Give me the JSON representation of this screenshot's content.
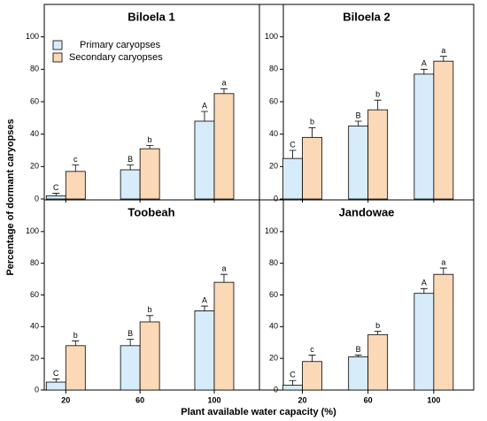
{
  "y_label": "Percentage of dormant caryopses",
  "x_label": "Plant available water capacity (%)",
  "categories": [
    "20",
    "60",
    "100"
  ],
  "chart_data": [
    {
      "type": "bar",
      "title": "Biloela 1",
      "ylim": [
        0,
        120
      ],
      "yticks": [
        0,
        20,
        40,
        60,
        80,
        100
      ],
      "series": [
        {
          "name": "Primary caryopses",
          "color": "#d6ecfa",
          "values": [
            2,
            18,
            48
          ],
          "errors": [
            1.5,
            3,
            6
          ],
          "letters": [
            "C",
            "B",
            "A"
          ]
        },
        {
          "name": "Secondary caryopses",
          "color": "#fbd9b6",
          "values": [
            17,
            31,
            65
          ],
          "errors": [
            4,
            2,
            3
          ],
          "letters": [
            "c",
            "b",
            "a"
          ]
        }
      ]
    },
    {
      "type": "bar",
      "title": "Biloela 2",
      "ylim": [
        0,
        120
      ],
      "yticks": [
        0,
        20,
        40,
        60,
        80,
        100
      ],
      "series": [
        {
          "name": "Primary caryopses",
          "color": "#d6ecfa",
          "values": [
            25,
            45,
            77
          ],
          "errors": [
            5,
            3,
            3
          ],
          "letters": [
            "C",
            "B",
            "A"
          ]
        },
        {
          "name": "Secondary caryopses",
          "color": "#fbd9b6",
          "values": [
            38,
            55,
            85
          ],
          "errors": [
            6,
            6,
            3
          ],
          "letters": [
            "b",
            "b",
            "a"
          ]
        }
      ]
    },
    {
      "type": "bar",
      "title": "Toobeah",
      "ylim": [
        0,
        120
      ],
      "yticks": [
        0,
        20,
        40,
        60,
        80,
        100
      ],
      "series": [
        {
          "name": "Primary caryopses",
          "color": "#d6ecfa",
          "values": [
            5,
            28,
            50
          ],
          "errors": [
            2,
            4,
            3
          ],
          "letters": [
            "C",
            "B",
            "A"
          ]
        },
        {
          "name": "Secondary caryopses",
          "color": "#fbd9b6",
          "values": [
            28,
            43,
            68
          ],
          "errors": [
            3,
            4,
            5
          ],
          "letters": [
            "b",
            "b",
            "a"
          ]
        }
      ]
    },
    {
      "type": "bar",
      "title": "Jandowae",
      "ylim": [
        0,
        120
      ],
      "yticks": [
        0,
        20,
        40,
        60,
        80,
        100
      ],
      "series": [
        {
          "name": "Primary caryopses",
          "color": "#d6ecfa",
          "values": [
            3,
            21,
            61
          ],
          "errors": [
            3,
            1,
            3
          ],
          "letters": [
            "C",
            "B",
            "A"
          ]
        },
        {
          "name": "Secondary caryopses",
          "color": "#fbd9b6",
          "values": [
            18,
            35,
            73
          ],
          "errors": [
            4,
            2,
            4
          ],
          "letters": [
            "c",
            "b",
            "a"
          ]
        }
      ]
    }
  ]
}
